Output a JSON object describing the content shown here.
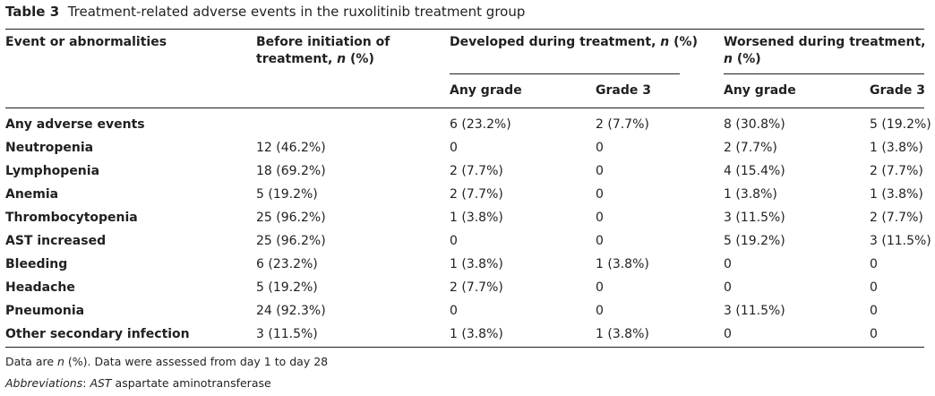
{
  "caption": {
    "label": "Table 3",
    "text": "Treatment-related adverse events in the ruxolitinib treatment group"
  },
  "header": {
    "col1": "Event or abnormalities",
    "col2_line1": "Before initiation of",
    "col2_line2_prefix": "treatment, ",
    "col2_line2_italic": "n",
    "col2_line2_suffix": " (%)",
    "group1_prefix": "Developed during treatment, ",
    "group1_italic": "n",
    "group1_suffix": " (%)",
    "group2_line1": "Worsened during treatment,",
    "group2_line2_italic": "n",
    "group2_line2_suffix": " (%)",
    "sub_any1": "Any grade",
    "sub_g31": "Grade 3",
    "sub_any2": "Any grade",
    "sub_g32": "Grade 3"
  },
  "rows": [
    {
      "event": "Any adverse events",
      "before": "",
      "dev_any": "6 (23.2%)",
      "dev_g3": "2 (7.7%)",
      "wor_any": "8 (30.8%)",
      "wor_g3": "5 (19.2%)"
    },
    {
      "event": "Neutropenia",
      "before": "12 (46.2%)",
      "dev_any": "0",
      "dev_g3": "0",
      "wor_any": "2 (7.7%)",
      "wor_g3": "1 (3.8%)"
    },
    {
      "event": "Lymphopenia",
      "before": "18 (69.2%)",
      "dev_any": "2 (7.7%)",
      "dev_g3": "0",
      "wor_any": "4 (15.4%)",
      "wor_g3": "2 (7.7%)"
    },
    {
      "event": "Anemia",
      "before": "5 (19.2%)",
      "dev_any": "2 (7.7%)",
      "dev_g3": "0",
      "wor_any": "1 (3.8%)",
      "wor_g3": "1 (3.8%)"
    },
    {
      "event": "Thrombocytopenia",
      "before": "25 (96.2%)",
      "dev_any": "1 (3.8%)",
      "dev_g3": "0",
      "wor_any": "3 (11.5%)",
      "wor_g3": "2 (7.7%)"
    },
    {
      "event": "AST increased",
      "before": "25 (96.2%)",
      "dev_any": "0",
      "dev_g3": "0",
      "wor_any": "5 (19.2%)",
      "wor_g3": "3 (11.5%)"
    },
    {
      "event": "Bleeding",
      "before": "6 (23.2%)",
      "dev_any": "1 (3.8%)",
      "dev_g3": "1 (3.8%)",
      "wor_any": "0",
      "wor_g3": "0"
    },
    {
      "event": "Headache",
      "before": "5 (19.2%)",
      "dev_any": "2 (7.7%)",
      "dev_g3": "0",
      "wor_any": "0",
      "wor_g3": "0"
    },
    {
      "event": "Pneumonia",
      "before": "24 (92.3%)",
      "dev_any": "0",
      "dev_g3": "0",
      "wor_any": "3 (11.5%)",
      "wor_g3": "0"
    },
    {
      "event": "Other secondary infection",
      "before": "3 (11.5%)",
      "dev_any": "1 (3.8%)",
      "dev_g3": "1 (3.8%)",
      "wor_any": "0",
      "wor_g3": "0"
    }
  ],
  "footnotes": {
    "note1_prefix": "Data are ",
    "note1_italic": "n",
    "note1_suffix": " (%). Data were assessed from day 1 to day 28",
    "note2_italic1": "Abbreviations",
    "note2_sep": ": ",
    "note2_italic2": "AST",
    "note2_suffix": " aspartate aminotransferase"
  }
}
